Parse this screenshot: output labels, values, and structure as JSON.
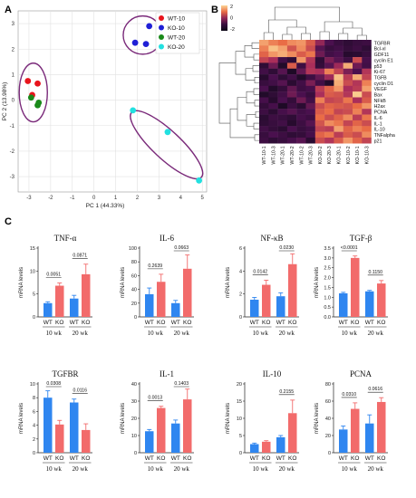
{
  "panel_labels": [
    "A",
    "B",
    "C"
  ],
  "colors": {
    "wt10": "#e8141c",
    "ko10": "#1f1fd6",
    "wt20": "#1a8a1a",
    "ko20": "#22e0e0",
    "ellipse": "#7a2a7a",
    "bar_wt": "#2f86f0",
    "bar_ko": "#f26b6b"
  },
  "chart_data": [
    {
      "type": "scatter",
      "xlabel": "PC 1 (44.33%)",
      "ylabel": "PC 2 (13.98%)",
      "xlim": [
        -3.5,
        5.2
      ],
      "ylim": [
        -3.6,
        3.5
      ],
      "xticks": [
        "-3",
        "-2",
        "-1",
        "0",
        "1",
        "2",
        "3",
        "4",
        "5"
      ],
      "yticks": [
        "3",
        "2",
        "1",
        "0",
        "-1",
        "-2",
        "-3"
      ],
      "grid": true,
      "legend": "top-right",
      "series": [
        {
          "name": "WT-10",
          "points": [
            [
              -3.05,
              0.75
            ],
            [
              -2.6,
              0.65
            ],
            [
              -2.85,
              0.2
            ]
          ]
        },
        {
          "name": "KO-10",
          "points": [
            [
              2.4,
              2.2
            ],
            [
              2.55,
              2.9
            ],
            [
              1.9,
              2.25
            ]
          ]
        },
        {
          "name": "WT-20",
          "points": [
            [
              -2.9,
              0.1
            ],
            [
              -2.55,
              -0.1
            ],
            [
              -2.6,
              -0.2
            ]
          ]
        },
        {
          "name": "KO-20",
          "points": [
            [
              1.8,
              -0.4
            ],
            [
              3.4,
              -1.25
            ],
            [
              4.85,
              -3.15
            ]
          ]
        }
      ]
    },
    {
      "type": "heatmap",
      "colorbar": [
        "2",
        "0",
        "-2"
      ],
      "rows": [
        "TGFBR",
        "Bcl-xl",
        "GDF11",
        "cyclin E1",
        "p53",
        "Ki-67",
        "TGFB",
        "cyclin D1",
        "VEGF",
        "Bax",
        "NFkB",
        "H2ax",
        "PCNA",
        "IL-6",
        "IL-1",
        "IL-10",
        "TNFalpha",
        "p21"
      ],
      "columns": [
        "WT-10-1",
        "WT-10-3",
        "WT-20-1",
        "WT-20-2",
        "WT-10-2",
        "WT-20-3",
        "KO-20-2",
        "KO-20-3",
        "KO-20-1",
        "KO-10-2",
        "KO-10-1",
        "KO-10-3"
      ],
      "values": [
        [
          1.5,
          1.2,
          1.0,
          1.3,
          1.4,
          0.8,
          0.0,
          -0.6,
          -1.0,
          -1.2,
          -1.0,
          -0.9
        ],
        [
          1.2,
          1.8,
          1.5,
          0.7,
          1.3,
          0.6,
          -0.5,
          -1.0,
          -0.8,
          -1.1,
          -0.9,
          -1.2
        ],
        [
          0.9,
          1.4,
          1.6,
          1.3,
          0.8,
          1.1,
          -0.3,
          -0.8,
          -0.6,
          -1.4,
          -1.3,
          -1.0
        ],
        [
          0.5,
          0.2,
          -0.8,
          -1.2,
          1.4,
          0.3,
          -1.2,
          -0.2,
          -0.5,
          -0.9,
          0.6,
          -0.7
        ],
        [
          -1.2,
          -0.3,
          -1.5,
          0.8,
          -0.9,
          0.2,
          -1.1,
          -0.5,
          0.1,
          1.6,
          -0.3,
          -0.8
        ],
        [
          -0.8,
          -1.2,
          -0.5,
          -1.6,
          -0.4,
          0.3,
          0.2,
          1.2,
          0.5,
          -0.2,
          -0.6,
          0.3
        ],
        [
          -1.4,
          -0.6,
          -1.2,
          -0.8,
          -1.5,
          -0.9,
          -0.4,
          0.1,
          1.8,
          0.4,
          1.6,
          0.5
        ],
        [
          -1.0,
          -0.8,
          -0.5,
          -1.3,
          -0.8,
          -0.2,
          -0.8,
          -1.5,
          1.6,
          0.6,
          0.3,
          1.2
        ],
        [
          -0.6,
          -1.5,
          -1.1,
          -0.4,
          -0.9,
          -0.7,
          0.4,
          0.9,
          1.4,
          0.2,
          0.4,
          1.5
        ],
        [
          -1.5,
          -1.2,
          -0.8,
          -0.3,
          -0.6,
          -1.0,
          0.2,
          0.8,
          0.7,
          0.3,
          1.9,
          0.6
        ],
        [
          -0.7,
          -1.4,
          -0.6,
          -1.1,
          -0.3,
          -0.8,
          1.2,
          0.5,
          0.6,
          1.1,
          0.2,
          0.8
        ],
        [
          -1.1,
          -0.7,
          -1.6,
          -0.9,
          -1.3,
          -0.4,
          0.6,
          0.9,
          0.8,
          0.7,
          1.0,
          1.4
        ],
        [
          -0.9,
          -1.3,
          -0.7,
          -0.5,
          -0.8,
          -0.6,
          0.8,
          1.0,
          0.5,
          0.6,
          1.2,
          0.3
        ],
        [
          -1.3,
          -0.9,
          -1.0,
          -1.2,
          -0.7,
          -0.9,
          1.0,
          0.6,
          0.9,
          1.3,
          0.4,
          1.1
        ],
        [
          -1.2,
          -1.0,
          -0.8,
          -1.4,
          -0.9,
          -0.5,
          0.7,
          1.3,
          1.1,
          0.5,
          0.9,
          0.6
        ],
        [
          -0.8,
          -1.1,
          -1.3,
          -0.6,
          -1.0,
          -0.8,
          0.5,
          0.4,
          1.5,
          0.9,
          1.2,
          1.0
        ],
        [
          -1.0,
          -0.6,
          -0.9,
          -1.2,
          -1.1,
          -0.7,
          0.9,
          1.1,
          0.4,
          0.8,
          0.6,
          1.3
        ],
        [
          -0.9,
          -1.2,
          -1.0,
          -0.7,
          -0.5,
          -1.3,
          0.6,
          0.3,
          0.8,
          1.4,
          0.9,
          0.5
        ]
      ]
    },
    {
      "type": "bar",
      "panels": [
        {
          "title": "TNF-α",
          "ylabel": "mRNA levels",
          "ylim": [
            0,
            15
          ],
          "yticks": [
            "0",
            "5",
            "10",
            "15"
          ],
          "values": [
            3.0,
            6.8,
            4.0,
            9.3
          ],
          "errors": [
            0.3,
            0.6,
            0.7,
            2.2
          ],
          "pvalues": [
            "0.0051",
            "0.0871"
          ]
        },
        {
          "title": "IL-6",
          "ylabel": "mRNA levels",
          "ylim": [
            0,
            100
          ],
          "yticks": [
            "0",
            "20",
            "40",
            "60",
            "80",
            "100"
          ],
          "values": [
            33,
            51,
            20,
            70
          ],
          "errors": [
            9,
            11,
            4,
            20
          ],
          "pvalues": [
            "0.2639",
            "0.0663"
          ]
        },
        {
          "title": "NF-κB",
          "ylabel": "mRNA levels",
          "ylim": [
            0,
            6
          ],
          "yticks": [
            "0",
            "2",
            "4",
            "6"
          ],
          "values": [
            1.5,
            2.8,
            1.8,
            4.6
          ],
          "errors": [
            0.2,
            0.4,
            0.3,
            0.9
          ],
          "pvalues": [
            "0.0142",
            "0.0230"
          ]
        },
        {
          "title": "TGF-β",
          "ylabel": "mRNA levels",
          "ylim": [
            0,
            3.5
          ],
          "yticks": [
            "0.0",
            "0.5",
            "1.0",
            "1.5",
            "2.0",
            "2.5",
            "3.0",
            "3.5"
          ],
          "values": [
            1.2,
            3.0,
            1.3,
            1.7
          ],
          "errors": [
            0.05,
            0.1,
            0.05,
            0.15
          ],
          "pvalues": [
            "<0.0001",
            "0.1150"
          ]
        },
        {
          "title": "TGFBR",
          "ylabel": "mRNA levels",
          "ylim": [
            0,
            10
          ],
          "yticks": [
            "0",
            "2",
            "4",
            "6",
            "8",
            "10"
          ],
          "values": [
            8.0,
            4.1,
            7.3,
            3.3
          ],
          "errors": [
            1.0,
            0.6,
            0.5,
            0.9
          ],
          "pvalues": [
            "0.0308",
            "0.0116"
          ]
        },
        {
          "title": "IL-1",
          "ylabel": "mRNA levels",
          "ylim": [
            0,
            40
          ],
          "yticks": [
            "0",
            "10",
            "20",
            "30",
            "40"
          ],
          "values": [
            12.5,
            26,
            17,
            31
          ],
          "errors": [
            1.0,
            1.0,
            2.0,
            6.0
          ],
          "pvalues": [
            "0.0013",
            "0.1403"
          ]
        },
        {
          "title": "IL-10",
          "ylabel": "mRNA levels",
          "ylim": [
            0,
            20
          ],
          "yticks": [
            "0",
            "5",
            "10",
            "15",
            "20"
          ],
          "values": [
            2.5,
            3.2,
            4.5,
            11.5
          ],
          "errors": [
            0.3,
            0.3,
            0.5,
            3.8
          ],
          "pvalues": [
            "0.2155"
          ]
        },
        {
          "title": "PCNA",
          "ylabel": "mRNA levels",
          "ylim": [
            0,
            80
          ],
          "yticks": [
            "0",
            "20",
            "40",
            "60",
            "80"
          ],
          "values": [
            27,
            51,
            34,
            59
          ],
          "errors": [
            4,
            7,
            10,
            5
          ],
          "pvalues": [
            "0.0310",
            "0.0616"
          ]
        }
      ],
      "categories": [
        "WT",
        "KO",
        "WT",
        "KO"
      ],
      "groups": [
        "10 wk",
        "20 wk"
      ]
    }
  ]
}
